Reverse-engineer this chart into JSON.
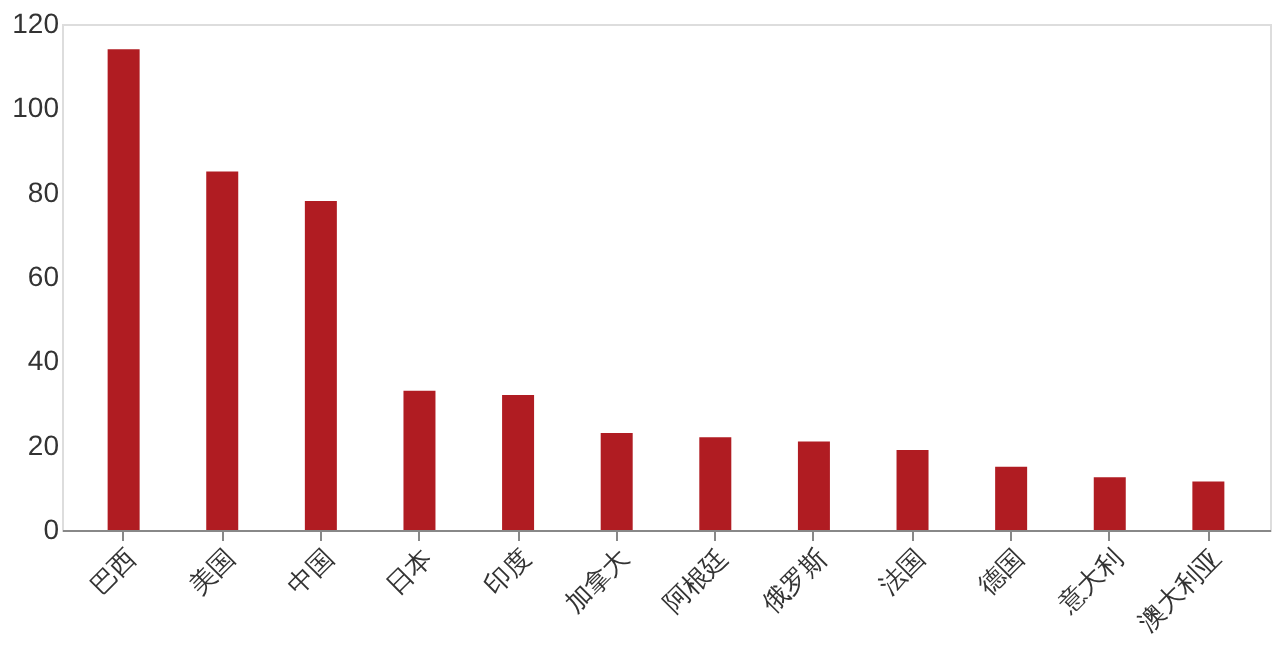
{
  "chart_data": {
    "type": "bar",
    "categories": [
      "巴西",
      "美国",
      "中国",
      "日本",
      "印度",
      "加拿大",
      "阿根廷",
      "俄罗斯",
      "法国",
      "德国",
      "意大利",
      "澳大利亚"
    ],
    "values": [
      114,
      85,
      78,
      33,
      32,
      23,
      22,
      21,
      19,
      15,
      12.5,
      11.5
    ],
    "color": "#b01c22",
    "ylim": [
      0,
      120
    ],
    "yticks": [
      0,
      20,
      40,
      60,
      80,
      100,
      120
    ],
    "grid": false
  }
}
